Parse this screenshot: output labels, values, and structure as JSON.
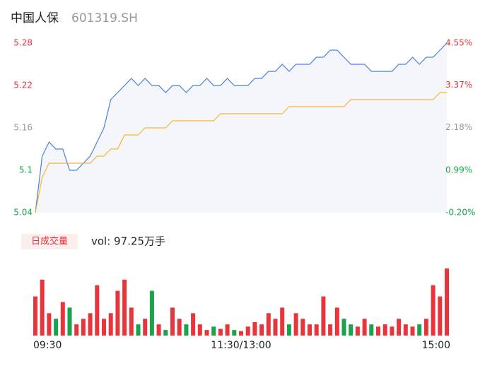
{
  "chart_data": {
    "type": "intraday",
    "title": "中国人保",
    "subtitle": "601319.SH",
    "categories": [
      "09:30",
      null,
      null,
      null,
      null,
      null,
      null,
      null,
      null,
      null,
      null,
      null,
      null,
      null,
      null,
      null,
      null,
      null,
      null,
      null,
      null,
      null,
      null,
      null,
      null,
      null,
      null,
      null,
      null,
      null,
      "11:30/13:00",
      null,
      null,
      null,
      null,
      null,
      null,
      null,
      null,
      null,
      null,
      null,
      null,
      null,
      null,
      null,
      null,
      null,
      null,
      null,
      null,
      null,
      null,
      null,
      null,
      null,
      null,
      null,
      null,
      null,
      "15:00"
    ],
    "series": [
      {
        "name": "price",
        "color": "#4a7fe0",
        "values": [
          5.04,
          5.12,
          5.14,
          5.13,
          5.13,
          5.1,
          5.1,
          5.11,
          5.12,
          5.14,
          5.16,
          5.2,
          5.21,
          5.22,
          5.23,
          5.22,
          5.23,
          5.22,
          5.22,
          5.21,
          5.22,
          5.22,
          5.21,
          5.22,
          5.22,
          5.23,
          5.22,
          5.22,
          5.23,
          5.22,
          5.22,
          5.22,
          5.23,
          5.23,
          5.24,
          5.24,
          5.25,
          5.24,
          5.25,
          5.25,
          5.25,
          5.26,
          5.26,
          5.27,
          5.27,
          5.26,
          5.25,
          5.25,
          5.25,
          5.24,
          5.24,
          5.24,
          5.24,
          5.25,
          5.25,
          5.26,
          5.25,
          5.26,
          5.26,
          5.27,
          5.28
        ]
      },
      {
        "name": "average",
        "color": "#f5b82e",
        "values": [
          5.04,
          5.09,
          5.11,
          5.11,
          5.11,
          5.11,
          5.11,
          5.11,
          5.11,
          5.12,
          5.12,
          5.13,
          5.13,
          5.15,
          5.15,
          5.15,
          5.16,
          5.16,
          5.16,
          5.16,
          5.17,
          5.17,
          5.17,
          5.17,
          5.17,
          5.17,
          5.17,
          5.18,
          5.18,
          5.18,
          5.18,
          5.18,
          5.18,
          5.18,
          5.18,
          5.18,
          5.18,
          5.19,
          5.19,
          5.19,
          5.19,
          5.19,
          5.19,
          5.19,
          5.19,
          5.19,
          5.2,
          5.2,
          5.2,
          5.2,
          5.2,
          5.2,
          5.2,
          5.2,
          5.2,
          5.2,
          5.2,
          5.2,
          5.2,
          5.21,
          5.21
        ]
      }
    ],
    "area_color": "#f4f6fc",
    "ylim": [
      5.04,
      5.28
    ],
    "yticks": [
      5.28,
      5.22,
      5.16,
      5.1,
      5.04
    ],
    "ytick_colors": [
      "#e8343a",
      "#e8343a",
      "#999999",
      "#1aa34a",
      "#1aa34a"
    ],
    "y2lim": [
      -0.2,
      4.55
    ],
    "y2ticks": [
      {
        "value": 4.55,
        "label": "4.55%"
      },
      {
        "value": 3.37,
        "label": "3.37%"
      },
      {
        "value": 2.18,
        "label": "2.18%"
      },
      {
        "value": 0.99,
        "label": "0.99%"
      },
      {
        "value": -0.2,
        "label": "-0.20%"
      }
    ],
    "volume": {
      "label": "日成交量",
      "summary": "vol: 97.25万手",
      "values": [
        3.5,
        5.0,
        2.0,
        1.5,
        3.0,
        2.5,
        1.0,
        1.5,
        2.0,
        4.5,
        1.5,
        2.0,
        4.0,
        5.0,
        2.5,
        1.0,
        1.5,
        4.0,
        1.0,
        0.5,
        2.5,
        1.5,
        1.0,
        2.0,
        1.0,
        0.5,
        0.8,
        0.6,
        1.0,
        0.5,
        0.4,
        0.8,
        1.2,
        1.0,
        2.0,
        1.5,
        2.5,
        1.0,
        2.0,
        1.5,
        1.0,
        1.0,
        3.5,
        1.0,
        2.5,
        1.5,
        1.0,
        0.8,
        1.5,
        1.0,
        0.8,
        1.0,
        0.8,
        1.5,
        1.0,
        0.8,
        1.0,
        1.5,
        4.5,
        3.5,
        6.0
      ],
      "ylim": [
        0,
        6
      ],
      "up_color": "#e8343a",
      "down_color": "#1aa34a"
    }
  }
}
